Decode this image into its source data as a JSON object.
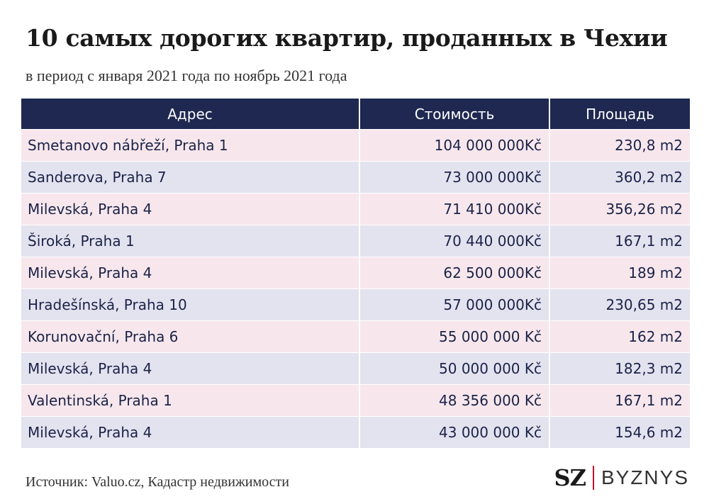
{
  "title": "10 самых дорогих квартир, проданных в Чехии",
  "subtitle": "в период с января 2021 года по ноябрь 2021 года",
  "colors": {
    "header_bg": "#1e2850",
    "row_pink": "#f7e7ec",
    "row_lavender": "#e3e3ef",
    "logo_separator": "#c8102e"
  },
  "chart_data": {
    "type": "table",
    "title": "10 самых дорогих квартир, проданных в Чехии",
    "subtitle": "в период с января 2021 года по ноябрь 2021 года",
    "columns": [
      "Адрес",
      "Стоимость",
      "Площадь"
    ],
    "rows": [
      {
        "address": "Smetanovo nábřeží, Praha 1",
        "price": "104 000 000Kč",
        "area": "230,8 m2"
      },
      {
        "address": "Sanderova, Praha 7",
        "price": "73 000 000Kč",
        "area": "360,2 m2"
      },
      {
        "address": "Milevská, Praha 4",
        "price": "71 410 000Kč",
        "area": "356,26 m2"
      },
      {
        "address": "Široká, Praha 1",
        "price": "70 440 000Kč",
        "area": "167,1 m2"
      },
      {
        "address": "Milevská, Praha 4",
        "price": "62 500 000Kč",
        "area": "189 m2"
      },
      {
        "address": "Hradešínská, Praha 10",
        "price": "57 000 000Kč",
        "area": "230,65 m2"
      },
      {
        "address": "Korunovační, Praha 6",
        "price": "55 000 000 Kč",
        "area": "162 m2"
      },
      {
        "address": "Milevská, Praha 4",
        "price": "50 000 000 Kč",
        "area": "182,3 m2"
      },
      {
        "address": "Valentinská, Praha 1",
        "price": "48 356 000 Kč",
        "area": "167,1 m2"
      },
      {
        "address": "Milevská, Praha 4",
        "price": "43 000 000 Kč",
        "area": "154,6 m2"
      }
    ]
  },
  "footer": {
    "source": "Источник: Valuo.cz, Кадастр недвижимости",
    "logo_sz": "SZ",
    "logo_byznys": "BYZNYS"
  }
}
